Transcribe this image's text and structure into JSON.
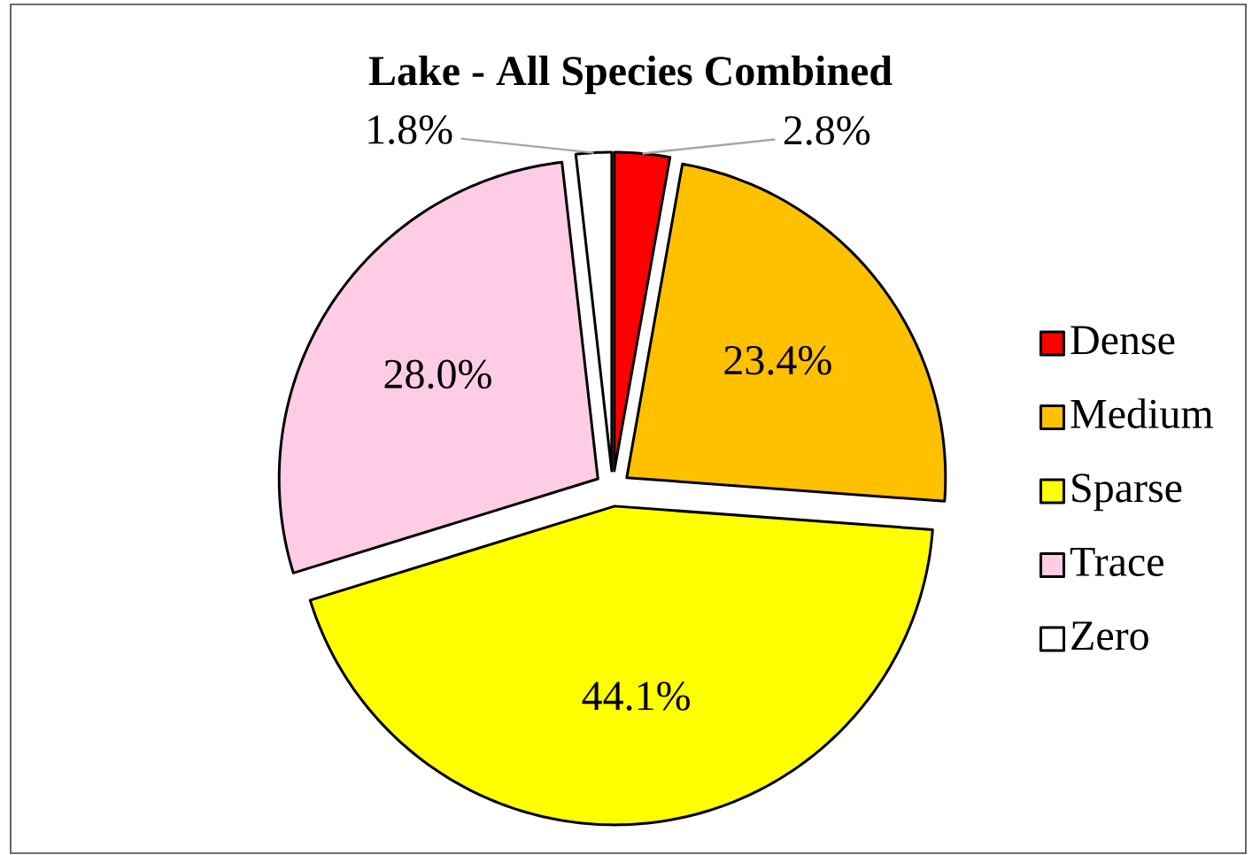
{
  "chart_data": {
    "type": "pie",
    "title": "Lake - All Species Combined",
    "categories": [
      "Dense",
      "Medium",
      "Sparse",
      "Trace",
      "Zero"
    ],
    "values": [
      2.8,
      23.4,
      44.1,
      28.0,
      1.8
    ],
    "value_labels": [
      "2.8%",
      "23.4%",
      "44.1%",
      "28.0%",
      "1.8%"
    ],
    "colors": [
      "#ff0000",
      "#ffc000",
      "#ffff00",
      "#ffcce6",
      "#ffffff"
    ],
    "legend": "right"
  }
}
